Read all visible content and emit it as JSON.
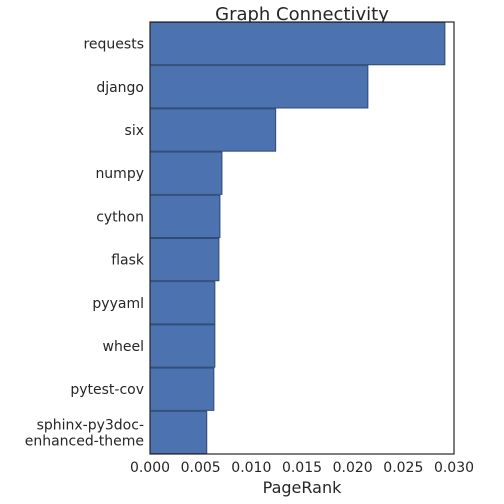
{
  "chart_data": {
    "type": "bar",
    "orientation": "horizontal",
    "title": "Graph Connectivity",
    "xlabel": "PageRank",
    "ylabel": "",
    "categories": [
      "requests",
      "django",
      "six",
      "numpy",
      "cython",
      "flask",
      "pyyaml",
      "wheel",
      "pytest-cov",
      "sphinx-py3doc-enhanced-theme"
    ],
    "category_lines": [
      [
        "requests"
      ],
      [
        "django"
      ],
      [
        "six"
      ],
      [
        "numpy"
      ],
      [
        "cython"
      ],
      [
        "flask"
      ],
      [
        "pyyaml"
      ],
      [
        "wheel"
      ],
      [
        "pytest-cov"
      ],
      [
        "sphinx-py3doc-",
        "enhanced-theme"
      ]
    ],
    "values": [
      0.0291,
      0.0215,
      0.0124,
      0.0071,
      0.0069,
      0.0068,
      0.0064,
      0.0064,
      0.0063,
      0.0056
    ],
    "xlim": [
      0.0,
      0.03
    ],
    "xticks": [
      "0.000",
      "0.005",
      "0.010",
      "0.015",
      "0.020",
      "0.025",
      "0.030"
    ],
    "grid": false,
    "bar_color": "#4c72b0"
  }
}
